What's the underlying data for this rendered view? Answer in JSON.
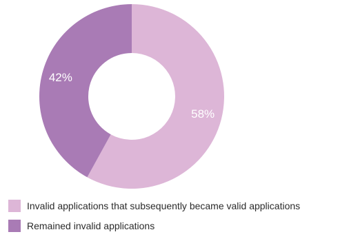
{
  "chart_data": {
    "type": "pie",
    "donut": true,
    "slices": [
      {
        "label": "Invalid applications that subsequently became valid applications",
        "value": 58,
        "display": "58%",
        "color": "#ddb6d7"
      },
      {
        "label": "Remained invalid applications",
        "value": 42,
        "display": "42%",
        "color": "#a97bb5"
      }
    ],
    "legend_position": "bottom-left"
  }
}
